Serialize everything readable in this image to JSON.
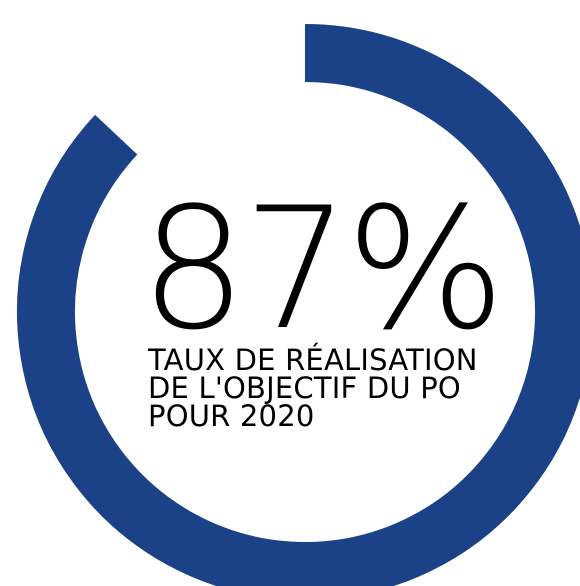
{
  "chart_data": {
    "type": "donut",
    "value_percent": 87,
    "display_value": "87%",
    "label_lines": [
      "TAUX DE RÉALISATION",
      "DE L'OBJECTIF DU PO",
      "POUR 2020"
    ],
    "ring_color": "#1b4186",
    "remainder_color": "#ffffff"
  }
}
